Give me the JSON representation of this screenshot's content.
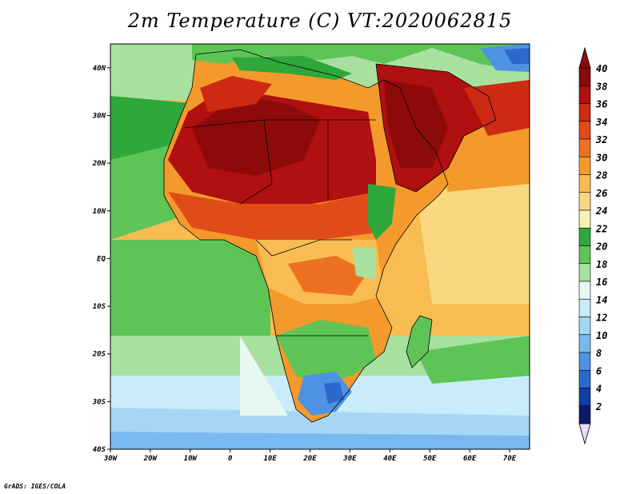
{
  "title": "2m Temperature (C) VT:2020062815",
  "credit": "GrADS: IGES/COLA",
  "map": {
    "lon_range": [
      -30,
      75
    ],
    "lat_range": [
      -40,
      45
    ],
    "x_ticks": [
      {
        "value": -30,
        "label": "30W"
      },
      {
        "value": -20,
        "label": "20W"
      },
      {
        "value": -10,
        "label": "10W"
      },
      {
        "value": 0,
        "label": "0"
      },
      {
        "value": 10,
        "label": "10E"
      },
      {
        "value": 20,
        "label": "20E"
      },
      {
        "value": 30,
        "label": "30E"
      },
      {
        "value": 40,
        "label": "40E"
      },
      {
        "value": 50,
        "label": "50E"
      },
      {
        "value": 60,
        "label": "60E"
      },
      {
        "value": 70,
        "label": "70E"
      }
    ],
    "y_ticks": [
      {
        "value": 40,
        "label": "40N"
      },
      {
        "value": 30,
        "label": "30N"
      },
      {
        "value": 20,
        "label": "20N"
      },
      {
        "value": 10,
        "label": "10N"
      },
      {
        "value": 0,
        "label": "EQ"
      },
      {
        "value": -10,
        "label": "10S"
      },
      {
        "value": -20,
        "label": "20S"
      },
      {
        "value": -30,
        "label": "30S"
      },
      {
        "value": -40,
        "label": "40S"
      }
    ]
  },
  "colorbar": {
    "labels": [
      "40",
      "38",
      "36",
      "34",
      "32",
      "30",
      "28",
      "26",
      "24",
      "22",
      "20",
      "18",
      "16",
      "14",
      "12",
      "10",
      "8",
      "6",
      "4",
      "2"
    ],
    "colors": [
      "#8c0a0a",
      "#b01010",
      "#cc2a12",
      "#e04c18",
      "#ec7222",
      "#f49a2c",
      "#f8bc52",
      "#fad880",
      "#f8f0b4",
      "#2ea83a",
      "#5ec456",
      "#a8e0a0",
      "#e6f8f0",
      "#c8ecfa",
      "#a6d6f6",
      "#7ab8f0",
      "#4e92e2",
      "#2a6acc",
      "#1040a6",
      "#0a1a6e"
    ],
    "top_color": "#8c0a0a",
    "bottom_color": "#e8dcf6"
  }
}
